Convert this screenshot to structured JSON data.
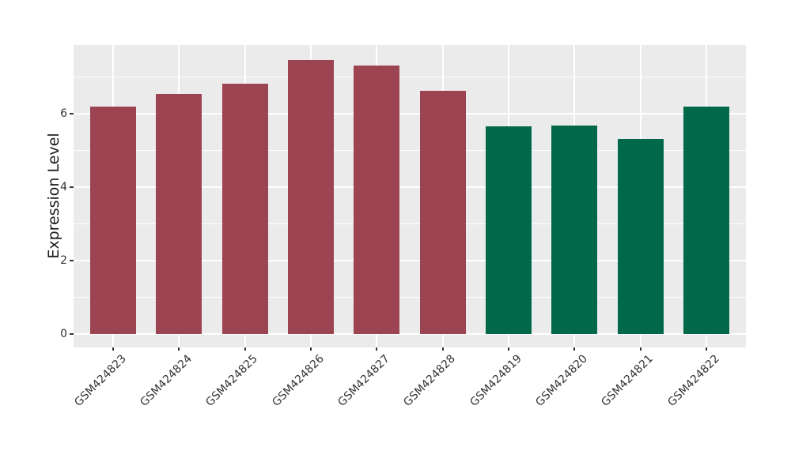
{
  "figure": {
    "background": "#FFFFFF",
    "panel_background": "#EBEBEB",
    "gridline_color": "#FFFFFF",
    "axis_text_color": "#333333",
    "axis_title_color": "#1A1A1A"
  },
  "chart_data": {
    "type": "bar",
    "title": "",
    "xlabel": "",
    "ylabel": "Expression Level",
    "categories": [
      "GSM424823",
      "GSM424824",
      "GSM424825",
      "GSM424826",
      "GSM424827",
      "GSM424828",
      "GSM424819",
      "GSM424820",
      "GSM424821",
      "GSM424822"
    ],
    "values": [
      6.2,
      6.55,
      6.82,
      7.47,
      7.31,
      6.62,
      5.65,
      5.67,
      5.31,
      6.2
    ],
    "bar_colors": [
      "#9C4451",
      "#9C4451",
      "#9C4451",
      "#9C4451",
      "#9C4451",
      "#9C4451",
      "#01694A",
      "#01694A",
      "#01694A",
      "#01694A"
    ],
    "color_legend": {
      "maroon_group": {
        "color": "#9C4451",
        "categories": [
          "GSM424823",
          "GSM424824",
          "GSM424825",
          "GSM424826",
          "GSM424827",
          "GSM424828"
        ]
      },
      "green_group": {
        "color": "#01694A",
        "categories": [
          "GSM424819",
          "GSM424820",
          "GSM424821",
          "GSM424822"
        ]
      }
    },
    "ylim": [
      -0.375,
      7.875
    ],
    "xlim": [
      0.4,
      10.6
    ],
    "bar_width": 0.7,
    "yticks_major": [
      0,
      2,
      4,
      6
    ],
    "yticks_minor": [
      1,
      3,
      5,
      7
    ],
    "x_tick_label_angle_deg": 45,
    "grid": "horizontal major+minor, vertical major at category centers; white on gray panel",
    "legend": "none"
  }
}
